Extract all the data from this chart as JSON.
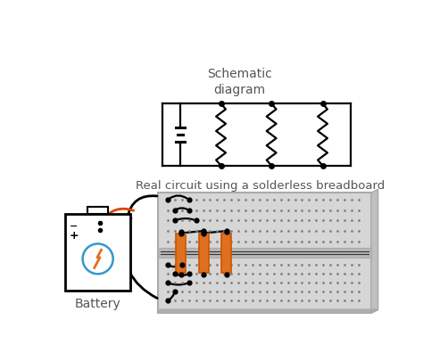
{
  "title_schematic": "Schematic\ndiagram",
  "title_real": "Real circuit using a solderless breadboard",
  "battery_label": "Battery",
  "bg_color": "#ffffff",
  "text_color": "#555555",
  "line_color": "#000000",
  "bb_face": "#d6d6d6",
  "bb_edge": "#aaaaaa",
  "bb_mid_face": "#b8b8b8",
  "bb_side_face": "#c0c0c0",
  "dot_color": "#808080",
  "resistor_fill": "#e07020",
  "resistor_edge": "#cc5500",
  "wire_color": "#111111",
  "orange_wire": "#dd4400",
  "bat_circle_color": "#3399cc",
  "bat_bolt_color": "#e07020"
}
